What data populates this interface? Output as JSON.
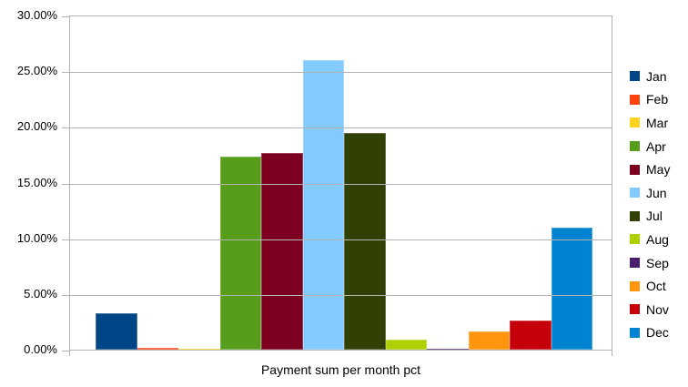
{
  "chart_data": {
    "type": "bar",
    "title": "",
    "xlabel": "Payment sum per month pct",
    "ylabel": "",
    "categories": [
      "Jan",
      "Feb",
      "Mar",
      "Apr",
      "May",
      "Jun",
      "Jul",
      "Aug",
      "Sep",
      "Oct",
      "Nov",
      "Dec"
    ],
    "values": [
      3.3,
      0.15,
      0.1,
      17.35,
      17.7,
      26.1,
      19.5,
      0.9,
      0.1,
      1.6,
      2.6,
      11.0
    ],
    "value_unit": "%",
    "colors": [
      "#004586",
      "#FF420E",
      "#FFD320",
      "#579D1C",
      "#7E0021",
      "#83CAFF",
      "#314004",
      "#AECF00",
      "#4B1F6F",
      "#FF950E",
      "#C5000B",
      "#0084D1"
    ],
    "ylim": [
      0,
      30
    ],
    "ytick_step": 5,
    "ytick_labels": [
      "0.00%",
      "5.00%",
      "10.00%",
      "15.00%",
      "20.00%",
      "25.00%",
      "30.00%"
    ],
    "grid": "horizontal",
    "gridline_color": "#b3b3b3",
    "axis_color": "#b3b3b3",
    "text_color": "#000000",
    "background_color": "#ffffff",
    "legend_position": "right"
  }
}
